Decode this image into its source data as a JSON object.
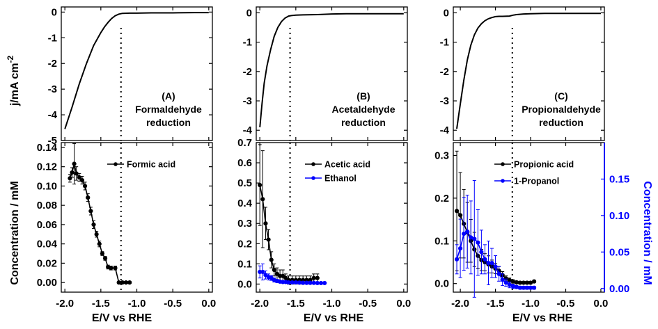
{
  "figure": {
    "ylabel_top": "j/mA cm",
    "ylabel_top_exp": "-2",
    "ylabel_bottom_left": "Concentration / mM",
    "ylabel_bottom_right": "Concentration / mM",
    "xlabel": "E/V vs RHE"
  },
  "chart_data": [
    {
      "id": "A_top",
      "type": "line",
      "annotation": [
        "(A)",
        "Formaldehyde",
        "reduction"
      ],
      "xlim": [
        -2.05,
        0.05
      ],
      "ylim": [
        -5,
        0.2
      ],
      "xticks": [
        -2.0,
        -1.5,
        -1.0,
        -0.5,
        0.0
      ],
      "xtick_labels": [
        "-2.0",
        "-1.5",
        "-1.0",
        "-0.5",
        "0.0"
      ],
      "yticks": [
        0,
        -1,
        -2,
        -3,
        -4,
        -5
      ],
      "ytick_labels": [
        "0",
        "-1",
        "-2",
        "-3",
        "-4",
        "-5"
      ],
      "dotted_x": -1.22,
      "series": [
        {
          "color": "#000000",
          "x": [
            -2.0,
            -1.9,
            -1.8,
            -1.7,
            -1.6,
            -1.5,
            -1.45,
            -1.4,
            -1.35,
            -1.3,
            -1.25,
            -1.2,
            -1.1,
            -1.0,
            -0.8,
            -0.5,
            -0.2,
            0.0
          ],
          "y": [
            -4.55,
            -3.7,
            -2.8,
            -2.0,
            -1.3,
            -0.8,
            -0.58,
            -0.4,
            -0.25,
            -0.14,
            -0.08,
            -0.05,
            -0.04,
            -0.04,
            -0.03,
            -0.03,
            -0.02,
            -0.02
          ]
        }
      ]
    },
    {
      "id": "B_top",
      "type": "line",
      "annotation": [
        "(B)",
        "Acetaldehyde",
        "reduction"
      ],
      "xlim": [
        -2.05,
        0.05
      ],
      "ylim": [
        -4.35,
        0.2
      ],
      "xticks": [
        -2.0,
        -1.5,
        -1.0,
        -0.5,
        0.0
      ],
      "xtick_labels": [
        "-2.0",
        "-1.5",
        "-1.0",
        "-0.5",
        "0.0"
      ],
      "yticks": [
        0,
        -1,
        -2,
        -3,
        -4
      ],
      "ytick_labels": [
        "0",
        "-1",
        "-2",
        "-3",
        "-4"
      ],
      "dotted_x": -1.58,
      "series": [
        {
          "color": "#000000",
          "x": [
            -2.0,
            -1.97,
            -1.94,
            -1.9,
            -1.85,
            -1.8,
            -1.75,
            -1.7,
            -1.65,
            -1.6,
            -1.55,
            -1.5,
            -1.4,
            -1.2,
            -1.0,
            -0.8,
            -0.5,
            0.0
          ],
          "y": [
            -3.9,
            -3.1,
            -2.4,
            -1.8,
            -1.25,
            -0.8,
            -0.5,
            -0.3,
            -0.18,
            -0.11,
            -0.09,
            -0.08,
            -0.07,
            -0.06,
            -0.04,
            -0.03,
            -0.03,
            -0.03
          ]
        }
      ]
    },
    {
      "id": "C_top",
      "type": "line",
      "annotation": [
        "(C)",
        "Propionaldehyde",
        "reduction"
      ],
      "xlim": [
        -2.1,
        0.05
      ],
      "ylim": [
        -4.35,
        0.2
      ],
      "xticks": [
        -2.0,
        -1.5,
        -1.0,
        -0.5,
        0.0
      ],
      "xtick_labels": [
        "-2.0",
        "-1.5",
        "-1.0",
        "-0.5",
        "0.0"
      ],
      "yticks": [
        0,
        -1,
        -2,
        -3,
        -4
      ],
      "ytick_labels": [
        "0",
        "-1",
        "-2",
        "-3",
        "-4"
      ],
      "dotted_x": -1.26,
      "series": [
        {
          "color": "#000000",
          "x": [
            -2.05,
            -2.0,
            -1.95,
            -1.9,
            -1.85,
            -1.8,
            -1.75,
            -1.7,
            -1.65,
            -1.6,
            -1.55,
            -1.5,
            -1.45,
            -1.4,
            -1.3,
            -1.25,
            -1.2,
            -1.1,
            -1.0,
            -0.8,
            -0.5,
            0.0
          ],
          "y": [
            -3.95,
            -3.1,
            -2.3,
            -1.6,
            -1.1,
            -0.75,
            -0.52,
            -0.37,
            -0.27,
            -0.2,
            -0.16,
            -0.13,
            -0.12,
            -0.12,
            -0.11,
            -0.08,
            -0.06,
            -0.04,
            -0.03,
            -0.02,
            -0.02,
            -0.02
          ]
        }
      ]
    },
    {
      "id": "A_bottom",
      "type": "line",
      "xlim": [
        -2.05,
        0.05
      ],
      "ylim": [
        -0.01,
        0.145
      ],
      "xticks": [
        -2.0,
        -1.5,
        -1.0,
        -0.5,
        0.0
      ],
      "xtick_labels": [
        "-2.0",
        "-1.5",
        "-1.0",
        "-0.5",
        "0.0"
      ],
      "yticks": [
        0.0,
        0.02,
        0.04,
        0.06,
        0.08,
        0.1,
        0.12,
        0.14
      ],
      "ytick_labels": [
        "0.00",
        "0.02",
        "0.04",
        "0.06",
        "0.08",
        "0.10",
        "0.12",
        "0.14"
      ],
      "dotted_x": -1.22,
      "legend": "top-right",
      "series": [
        {
          "name": "Formic acid",
          "color": "#000000",
          "x": [
            -1.93,
            -1.9,
            -1.87,
            -1.84,
            -1.8,
            -1.76,
            -1.72,
            -1.68,
            -1.64,
            -1.6,
            -1.56,
            -1.52,
            -1.48,
            -1.44,
            -1.4,
            -1.36,
            -1.3,
            -1.25,
            -1.2,
            -1.15,
            -1.1
          ],
          "y": [
            0.108,
            0.114,
            0.123,
            0.113,
            0.109,
            0.106,
            0.1,
            0.088,
            0.074,
            0.06,
            0.05,
            0.04,
            0.03,
            0.025,
            0.016,
            0.015,
            0.015,
            0.0,
            0.0,
            0.0,
            0.0
          ],
          "err": [
            0.004,
            0.005,
            0.021,
            0.007,
            0.004,
            0.004,
            0.004,
            0.004,
            0.004,
            0.004,
            0.003,
            0.003,
            0.002,
            0.002,
            0.002,
            0.002,
            0.002,
            0.001,
            0.001,
            0.001,
            0.001
          ]
        }
      ]
    },
    {
      "id": "B_bottom",
      "type": "line",
      "xlim": [
        -2.05,
        0.05
      ],
      "ylim": [
        -0.04,
        0.7
      ],
      "xticks": [
        -2.0,
        -1.5,
        -1.0,
        -0.5,
        0.0
      ],
      "xtick_labels": [
        "-2.0",
        "-1.5",
        "-1.0",
        "-0.5",
        "0.0"
      ],
      "yticks": [
        0.0,
        0.1,
        0.2,
        0.3,
        0.4,
        0.5,
        0.6,
        0.7
      ],
      "ytick_labels": [
        "0.0",
        "0.1",
        "0.2",
        "0.3",
        "0.4",
        "0.5",
        "0.6",
        "0.7"
      ],
      "dotted_x": -1.58,
      "legend": "top-right",
      "series": [
        {
          "name": "Acetic acid",
          "color": "#000000",
          "x": [
            -2.0,
            -1.96,
            -1.92,
            -1.88,
            -1.84,
            -1.8,
            -1.76,
            -1.72,
            -1.68,
            -1.64,
            -1.6,
            -1.55,
            -1.5,
            -1.45,
            -1.4,
            -1.35,
            -1.3,
            -1.25,
            -1.2
          ],
          "y": [
            0.49,
            0.42,
            0.3,
            0.22,
            0.12,
            0.07,
            0.05,
            0.04,
            0.04,
            0.03,
            0.02,
            0.02,
            0.02,
            0.02,
            0.02,
            0.02,
            0.02,
            0.03,
            0.03
          ],
          "err": [
            0.2,
            0.24,
            0.08,
            0.05,
            0.04,
            0.03,
            0.03,
            0.03,
            0.03,
            0.02,
            0.02,
            0.02,
            0.02,
            0.02,
            0.02,
            0.02,
            0.02,
            0.02,
            0.02
          ]
        },
        {
          "name": "Ethanol",
          "color": "#0000ff",
          "x": [
            -2.0,
            -1.96,
            -1.92,
            -1.88,
            -1.84,
            -1.8,
            -1.76,
            -1.72,
            -1.68,
            -1.64,
            -1.6,
            -1.55,
            -1.5,
            -1.45,
            -1.4,
            -1.35,
            -1.3,
            -1.25,
            -1.2,
            -1.15,
            -1.1
          ],
          "y": [
            0.06,
            0.06,
            0.045,
            0.035,
            0.03,
            0.02,
            0.015,
            0.012,
            0.01,
            0.01,
            0.008,
            0.008,
            0.008,
            0.007,
            0.006,
            0.006,
            0.006,
            0.006,
            0.005,
            0.005,
            0.005
          ],
          "err": [
            0.03,
            0.04,
            0.02,
            0.015,
            0.012,
            0.01,
            0.008,
            0.006,
            0.005,
            0.005,
            0.004,
            0.004,
            0.004,
            0.004,
            0.003,
            0.003,
            0.003,
            0.003,
            0.003,
            0.003,
            0.003
          ]
        }
      ]
    },
    {
      "id": "C_bottom",
      "type": "line",
      "xlim": [
        -2.1,
        0.05
      ],
      "ylim": [
        -0.02,
        0.33
      ],
      "yticks": [
        0.0,
        0.1,
        0.2,
        0.3
      ],
      "ytick_labels": [
        "0.0",
        "0.1",
        "0.2",
        "0.3"
      ],
      "ylim_right": [
        -0.005,
        0.2
      ],
      "yticks_right": [
        0.0,
        0.05,
        0.1,
        0.15
      ],
      "ytick_labels_right": [
        "0.00",
        "0.05",
        "0.10",
        "0.15"
      ],
      "xticks": [
        -2.0,
        -1.5,
        -1.0,
        -0.5,
        0.0
      ],
      "xtick_labels": [
        "-2.0",
        "-1.5",
        "-1.0",
        "-0.5",
        "0.0"
      ],
      "dotted_x": -1.26,
      "legend": "top-right",
      "series": [
        {
          "name": "Propionic acid",
          "color": "#000000",
          "axis": "left",
          "x": [
            -2.05,
            -2.0,
            -1.95,
            -1.9,
            -1.85,
            -1.8,
            -1.75,
            -1.7,
            -1.65,
            -1.6,
            -1.55,
            -1.5,
            -1.45,
            -1.4,
            -1.35,
            -1.3,
            -1.25,
            -1.2,
            -1.15,
            -1.1,
            -1.05,
            -1.0,
            -0.95
          ],
          "y": [
            0.17,
            0.16,
            0.14,
            0.12,
            0.1,
            0.08,
            0.065,
            0.055,
            0.05,
            0.045,
            0.04,
            0.035,
            0.03,
            0.02,
            0.012,
            0.008,
            0.005,
            0.003,
            0.002,
            0.002,
            0.002,
            0.002,
            0.005
          ],
          "err": [
            0.14,
            0.1,
            0.08,
            0.07,
            0.05,
            0.04,
            0.03,
            0.025,
            0.02,
            0.02,
            0.015,
            0.012,
            0.01,
            0.008,
            0.006,
            0.005,
            0.004,
            0.003,
            0.003,
            0.003,
            0.003,
            0.003,
            0.003
          ]
        },
        {
          "name": "1-Propanol",
          "color": "#0000ff",
          "axis": "right",
          "x": [
            -2.05,
            -2.0,
            -1.95,
            -1.9,
            -1.85,
            -1.8,
            -1.75,
            -1.7,
            -1.65,
            -1.6,
            -1.55,
            -1.5,
            -1.45,
            -1.4,
            -1.35,
            -1.3,
            -1.25,
            -1.2,
            -1.15,
            -1.1,
            -1.05,
            -1.0,
            -0.95
          ],
          "y": [
            0.04,
            0.055,
            0.075,
            0.078,
            0.07,
            0.068,
            0.063,
            0.05,
            0.04,
            0.035,
            0.035,
            0.03,
            0.02,
            0.012,
            0.008,
            0.005,
            0.003,
            0.002,
            0.001,
            0.001,
            0.001,
            0.001,
            0.001
          ],
          "err": [
            0.02,
            0.04,
            0.05,
            0.05,
            0.05,
            0.08,
            0.045,
            0.03,
            0.02,
            0.03,
            0.02,
            0.015,
            0.01,
            0.008,
            0.005,
            0.004,
            0.003,
            0.002,
            0.002,
            0.002,
            0.002,
            0.002,
            0.002
          ]
        }
      ]
    }
  ]
}
